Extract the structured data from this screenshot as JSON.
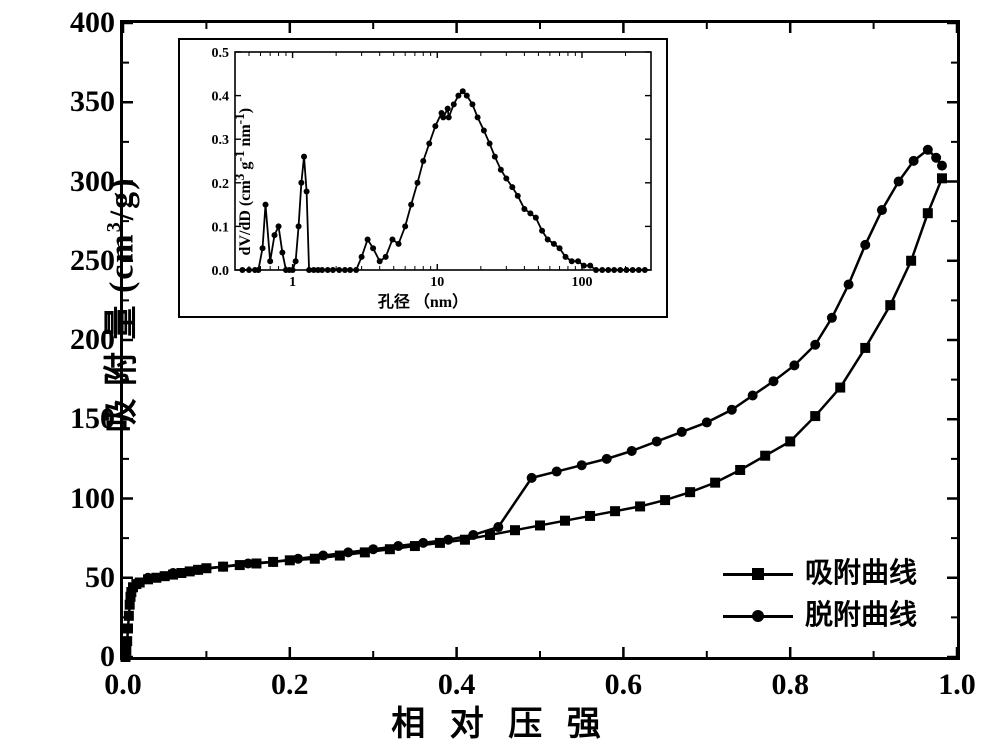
{
  "main_chart": {
    "type": "line",
    "title": null,
    "xlabel": "相 对 压 强",
    "ylabel": "吸 附 量 (cm³/g)",
    "xlim": [
      0.0,
      1.0
    ],
    "ylim": [
      0,
      400
    ],
    "xtick_step": 0.2,
    "ytick_step": 50,
    "xtick_labels": [
      "0.0",
      "0.2",
      "0.4",
      "0.6",
      "0.8",
      "1.0"
    ],
    "ytick_labels": [
      "0",
      "50",
      "100",
      "150",
      "200",
      "250",
      "300",
      "350",
      "400"
    ],
    "line_color": "#000000",
    "line_width": 2.5,
    "marker_size": 10,
    "background_color": "#ffffff",
    "label_fontsize": 34,
    "tick_fontsize": 30,
    "border_width": 3,
    "series": {
      "adsorption": {
        "label": "吸附曲线",
        "marker": "square",
        "points": [
          [
            0.003,
            0
          ],
          [
            0.004,
            4
          ],
          [
            0.005,
            10
          ],
          [
            0.006,
            18
          ],
          [
            0.007,
            26
          ],
          [
            0.008,
            33
          ],
          [
            0.009,
            38
          ],
          [
            0.01,
            41
          ],
          [
            0.012,
            44
          ],
          [
            0.016,
            46
          ],
          [
            0.02,
            47
          ],
          [
            0.03,
            49
          ],
          [
            0.04,
            50
          ],
          [
            0.05,
            51
          ],
          [
            0.06,
            52
          ],
          [
            0.07,
            53
          ],
          [
            0.08,
            54
          ],
          [
            0.09,
            55
          ],
          [
            0.1,
            56
          ],
          [
            0.12,
            57
          ],
          [
            0.14,
            58
          ],
          [
            0.16,
            59
          ],
          [
            0.18,
            60
          ],
          [
            0.2,
            61
          ],
          [
            0.23,
            62
          ],
          [
            0.26,
            64
          ],
          [
            0.29,
            66
          ],
          [
            0.32,
            68
          ],
          [
            0.35,
            70
          ],
          [
            0.38,
            72
          ],
          [
            0.41,
            74
          ],
          [
            0.44,
            77
          ],
          [
            0.47,
            80
          ],
          [
            0.5,
            83
          ],
          [
            0.53,
            86
          ],
          [
            0.56,
            89
          ],
          [
            0.59,
            92
          ],
          [
            0.62,
            95
          ],
          [
            0.65,
            99
          ],
          [
            0.68,
            104
          ],
          [
            0.71,
            110
          ],
          [
            0.74,
            118
          ],
          [
            0.77,
            127
          ],
          [
            0.8,
            136
          ],
          [
            0.83,
            152
          ],
          [
            0.86,
            170
          ],
          [
            0.89,
            195
          ],
          [
            0.92,
            222
          ],
          [
            0.945,
            250
          ],
          [
            0.965,
            280
          ],
          [
            0.982,
            302
          ]
        ]
      },
      "desorption": {
        "label": "脱附曲线",
        "marker": "circle",
        "points": [
          [
            0.982,
            310
          ],
          [
            0.975,
            315
          ],
          [
            0.965,
            320
          ],
          [
            0.948,
            313
          ],
          [
            0.93,
            300
          ],
          [
            0.91,
            282
          ],
          [
            0.89,
            260
          ],
          [
            0.87,
            235
          ],
          [
            0.85,
            214
          ],
          [
            0.83,
            197
          ],
          [
            0.805,
            184
          ],
          [
            0.78,
            174
          ],
          [
            0.755,
            165
          ],
          [
            0.73,
            156
          ],
          [
            0.7,
            148
          ],
          [
            0.67,
            142
          ],
          [
            0.64,
            136
          ],
          [
            0.61,
            130
          ],
          [
            0.58,
            125
          ],
          [
            0.55,
            121
          ],
          [
            0.52,
            117
          ],
          [
            0.49,
            113
          ],
          [
            0.45,
            82
          ],
          [
            0.42,
            77
          ],
          [
            0.39,
            74
          ],
          [
            0.36,
            72
          ],
          [
            0.33,
            70
          ],
          [
            0.3,
            68
          ],
          [
            0.27,
            66
          ],
          [
            0.24,
            64
          ],
          [
            0.21,
            62
          ],
          [
            0.18,
            60
          ],
          [
            0.15,
            59
          ],
          [
            0.12,
            57
          ],
          [
            0.09,
            55
          ],
          [
            0.06,
            53
          ],
          [
            0.03,
            50
          ]
        ]
      }
    },
    "legend": {
      "position": "lower-right",
      "items": [
        {
          "marker": "square",
          "label": "吸附曲线"
        },
        {
          "marker": "circle",
          "label": "脱附曲线"
        }
      ]
    }
  },
  "inset_chart": {
    "type": "line-scatter",
    "xlabel": "孔径 （nm）",
    "ylabel": "dV/dD (cm³ g⁻¹ nm⁻¹)",
    "xscale": "log",
    "yscale": "linear",
    "xlim": [
      0.4,
      300
    ],
    "ylim": [
      0.0,
      0.5
    ],
    "ytick_labels": [
      "0.0",
      "0.1",
      "0.2",
      "0.3",
      "0.4",
      "0.5"
    ],
    "xtick_labels": [
      "1",
      "10",
      "100"
    ],
    "line_color": "#000000",
    "line_width": 1.8,
    "marker": "circle",
    "marker_size": 6,
    "label_fontsize": 16,
    "tick_fontsize": 14,
    "border_width": 2,
    "data": [
      [
        0.45,
        0.0
      ],
      [
        0.5,
        0.0
      ],
      [
        0.55,
        0.0
      ],
      [
        0.58,
        0.0
      ],
      [
        0.62,
        0.05
      ],
      [
        0.65,
        0.15
      ],
      [
        0.7,
        0.02
      ],
      [
        0.75,
        0.08
      ],
      [
        0.8,
        0.1
      ],
      [
        0.85,
        0.04
      ],
      [
        0.9,
        0.0
      ],
      [
        0.95,
        0.0
      ],
      [
        1.0,
        0.0
      ],
      [
        1.05,
        0.02
      ],
      [
        1.1,
        0.1
      ],
      [
        1.15,
        0.2
      ],
      [
        1.2,
        0.26
      ],
      [
        1.25,
        0.18
      ],
      [
        1.3,
        0.0
      ],
      [
        1.4,
        0.0
      ],
      [
        1.5,
        0.0
      ],
      [
        1.6,
        0.0
      ],
      [
        1.75,
        0.0
      ],
      [
        1.9,
        0.0
      ],
      [
        2.1,
        0.0
      ],
      [
        2.3,
        0.0
      ],
      [
        2.5,
        0.0
      ],
      [
        2.75,
        0.0
      ],
      [
        3.0,
        0.03
      ],
      [
        3.3,
        0.07
      ],
      [
        3.6,
        0.05
      ],
      [
        4.0,
        0.02
      ],
      [
        4.4,
        0.03
      ],
      [
        4.9,
        0.07
      ],
      [
        5.4,
        0.06
      ],
      [
        6.0,
        0.1
      ],
      [
        6.6,
        0.15
      ],
      [
        7.3,
        0.2
      ],
      [
        8.0,
        0.25
      ],
      [
        8.8,
        0.29
      ],
      [
        9.7,
        0.33
      ],
      [
        10.7,
        0.36
      ],
      [
        11.0,
        0.35
      ],
      [
        11.8,
        0.37
      ],
      [
        12.0,
        0.35
      ],
      [
        13.0,
        0.38
      ],
      [
        14.0,
        0.4
      ],
      [
        15.0,
        0.41
      ],
      [
        16.0,
        0.4
      ],
      [
        17.5,
        0.38
      ],
      [
        19.0,
        0.35
      ],
      [
        21.0,
        0.32
      ],
      [
        23.0,
        0.29
      ],
      [
        25.0,
        0.26
      ],
      [
        27.5,
        0.23
      ],
      [
        30.0,
        0.21
      ],
      [
        33.0,
        0.19
      ],
      [
        36.0,
        0.17
      ],
      [
        40.0,
        0.14
      ],
      [
        44.0,
        0.13
      ],
      [
        48.0,
        0.12
      ],
      [
        53.0,
        0.09
      ],
      [
        58.0,
        0.07
      ],
      [
        64.0,
        0.06
      ],
      [
        70.0,
        0.05
      ],
      [
        77.0,
        0.03
      ],
      [
        85.0,
        0.02
      ],
      [
        94.0,
        0.02
      ],
      [
        103,
        0.01
      ],
      [
        114,
        0.01
      ],
      [
        125,
        0.0
      ],
      [
        138,
        0.0
      ],
      [
        152,
        0.0
      ],
      [
        167,
        0.0
      ],
      [
        184,
        0.0
      ],
      [
        203,
        0.0
      ],
      [
        224,
        0.0
      ],
      [
        247,
        0.0
      ],
      [
        272,
        0.0
      ]
    ]
  }
}
